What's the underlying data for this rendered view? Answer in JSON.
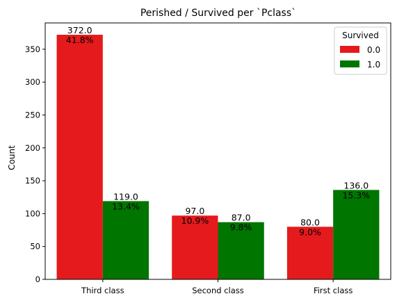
{
  "chart_data": {
    "type": "bar",
    "title": "Perished / Survived per `Pclass`",
    "xlabel": "",
    "ylabel": "Count",
    "ylim": [
      0,
      390
    ],
    "yticks": [
      0,
      50,
      100,
      150,
      200,
      250,
      300,
      350
    ],
    "categories": [
      "Third class",
      "Second class",
      "First class"
    ],
    "grid": false,
    "legend": {
      "title": "Survived",
      "position": "top-right"
    },
    "series": [
      {
        "name": "0.0",
        "color": "#e41a1c",
        "values": [
          372,
          97,
          80
        ],
        "value_labels": [
          "372.0",
          "97.0",
          "80.0"
        ],
        "pct_labels": [
          "41.8%",
          "10.9%",
          "9.0%"
        ]
      },
      {
        "name": "1.0",
        "color": "#007500",
        "values": [
          119,
          87,
          136
        ],
        "value_labels": [
          "119.0",
          "87.0",
          "136.0"
        ],
        "pct_labels": [
          "13.4%",
          "9.8%",
          "15.3%"
        ]
      }
    ]
  }
}
